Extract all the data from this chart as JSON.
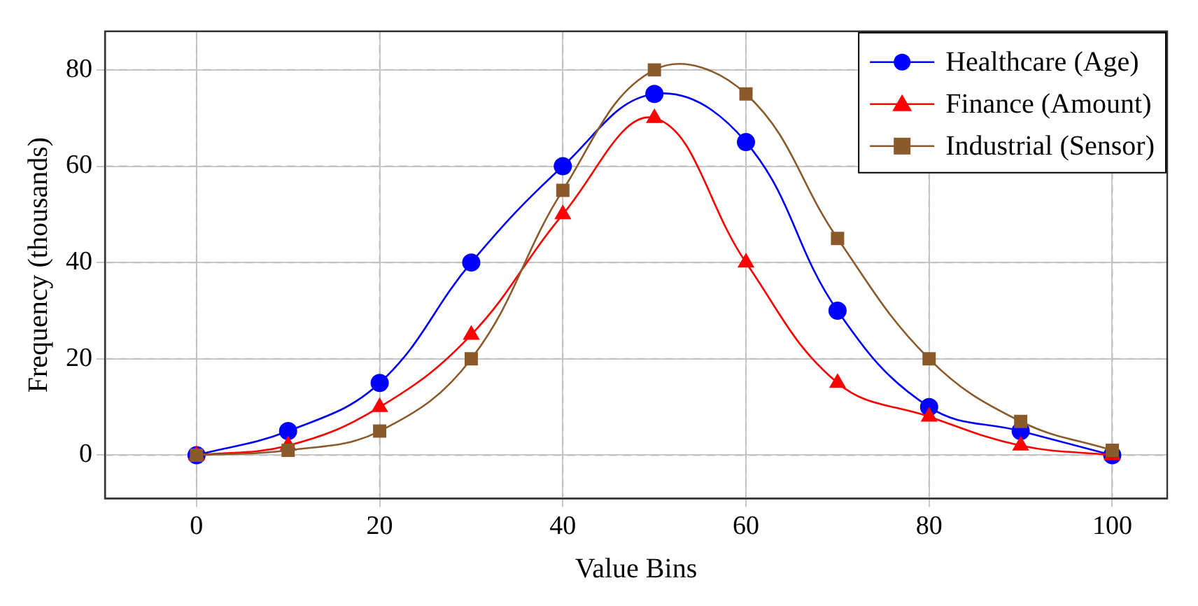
{
  "chart_data": {
    "type": "line",
    "xlabel": "Value Bins",
    "ylabel": "Frequency (thousands)",
    "x": [
      0,
      10,
      20,
      30,
      40,
      50,
      60,
      70,
      80,
      90,
      100
    ],
    "series": [
      {
        "name": "Healthcare (Age)",
        "color": "#0000ff",
        "marker": "circle",
        "values": [
          0,
          5,
          15,
          40,
          60,
          75,
          65,
          30,
          10,
          5,
          0
        ]
      },
      {
        "name": "Finance (Amount)",
        "color": "#ff0000",
        "marker": "triangle",
        "values": [
          0,
          2,
          10,
          25,
          50,
          70,
          40,
          15,
          8,
          2,
          0
        ]
      },
      {
        "name": "Industrial (Sensor)",
        "color": "#8b5a2b",
        "marker": "square",
        "values": [
          0,
          1,
          5,
          20,
          55,
          80,
          75,
          45,
          20,
          7,
          1
        ]
      }
    ],
    "xlim": [
      -10,
      106
    ],
    "xticks": [
      0,
      20,
      40,
      60,
      80,
      100
    ],
    "ylim": [
      -9,
      88
    ],
    "yticks": [
      0,
      20,
      40,
      60,
      80
    ],
    "grid": true,
    "legend": "top right",
    "line_style": "solid"
  }
}
